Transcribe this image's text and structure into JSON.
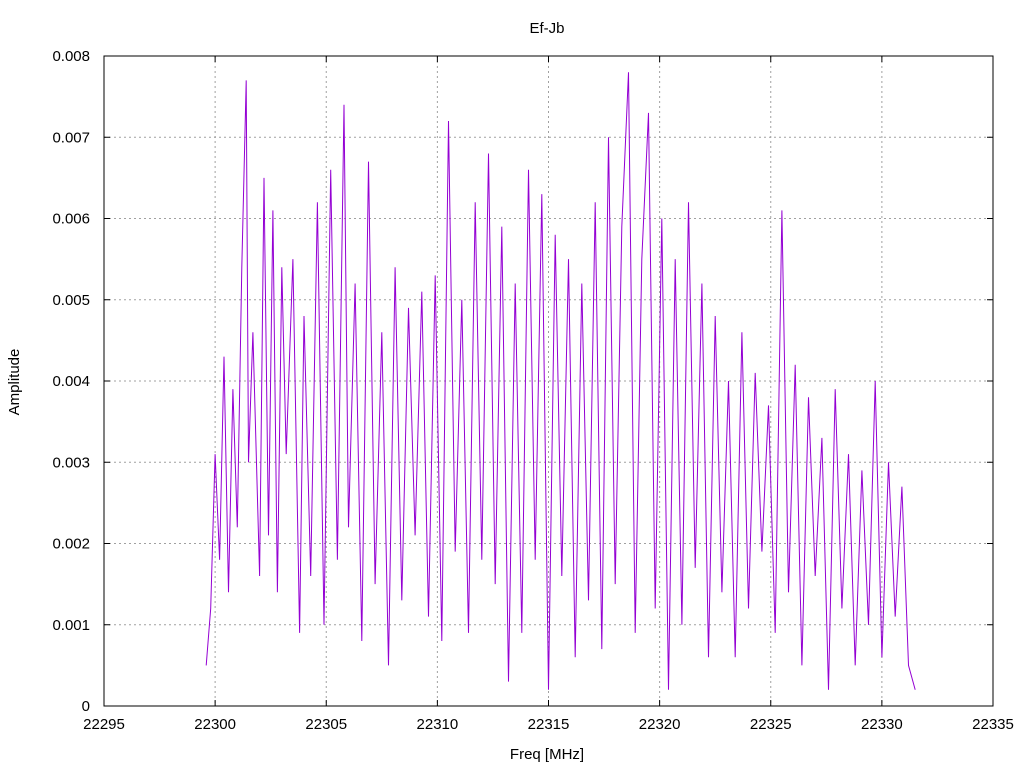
{
  "chart_data": {
    "type": "line",
    "title": "Ef-Jb",
    "xlabel": "Freq [MHz]",
    "ylabel": "Amplitude",
    "xlim": [
      22295,
      22335
    ],
    "ylim": [
      0,
      0.008
    ],
    "xticks": [
      "22295",
      "22300",
      "22305",
      "22310",
      "22315",
      "22320",
      "22325",
      "22330",
      "22335"
    ],
    "yticks": [
      "0",
      "0.001",
      "0.002",
      "0.003",
      "0.004",
      "0.005",
      "0.006",
      "0.007",
      "0.008"
    ],
    "grid": true,
    "line_color": "#9400d3",
    "series": [
      {
        "x": [
          22299.6,
          22299.8,
          22300.0,
          22300.2,
          22300.4,
          22300.6,
          22300.8,
          22301.0,
          22301.2,
          22301.4,
          22301.5,
          22301.7,
          22302.0,
          22302.2,
          22302.4,
          22302.6,
          22302.8,
          22303.0,
          22303.2,
          22303.5,
          22303.8,
          22304.0,
          22304.3,
          22304.6,
          22304.9,
          22305.2,
          22305.5,
          22305.8,
          22306.0,
          22306.3,
          22306.6,
          22306.9,
          22307.2,
          22307.5,
          22307.8,
          22308.1,
          22308.4,
          22308.7,
          22309.0,
          22309.3,
          22309.6,
          22309.9,
          22310.2,
          22310.5,
          22310.8,
          22311.1,
          22311.4,
          22311.7,
          22312.0,
          22312.3,
          22312.6,
          22312.9,
          22313.2,
          22313.5,
          22313.8,
          22314.1,
          22314.4,
          22314.7,
          22315.0,
          22315.3,
          22315.6,
          22315.9,
          22316.2,
          22316.5,
          22316.8,
          22317.1,
          22317.4,
          22317.7,
          22318.0,
          22318.3,
          22318.6,
          22318.9,
          22319.2,
          22319.5,
          22319.8,
          22320.1,
          22320.4,
          22320.7,
          22321.0,
          22321.3,
          22321.6,
          22321.9,
          22322.2,
          22322.5,
          22322.8,
          22323.1,
          22323.4,
          22323.7,
          22324.0,
          22324.3,
          22324.6,
          22324.9,
          22325.2,
          22325.5,
          22325.8,
          22326.1,
          22326.4,
          22326.7,
          22327.0,
          22327.3,
          22327.6,
          22327.9,
          22328.2,
          22328.5,
          22328.8,
          22329.1,
          22329.4,
          22329.7,
          22330.0,
          22330.3,
          22330.6,
          22330.9,
          22331.2,
          22331.5
        ],
        "y": [
          0.0005,
          0.0012,
          0.0031,
          0.0018,
          0.0043,
          0.0014,
          0.0039,
          0.0022,
          0.0054,
          0.0077,
          0.003,
          0.0046,
          0.0016,
          0.0065,
          0.0021,
          0.0061,
          0.0014,
          0.0054,
          0.0031,
          0.0055,
          0.0009,
          0.0048,
          0.0016,
          0.0062,
          0.001,
          0.0066,
          0.0018,
          0.0074,
          0.0022,
          0.0052,
          0.0008,
          0.0067,
          0.0015,
          0.0046,
          0.0005,
          0.0054,
          0.0013,
          0.0049,
          0.0021,
          0.0051,
          0.0011,
          0.0053,
          0.0008,
          0.0072,
          0.0019,
          0.005,
          0.0009,
          0.0062,
          0.0018,
          0.0068,
          0.0015,
          0.0059,
          0.0003,
          0.0052,
          0.0009,
          0.0066,
          0.0018,
          0.0063,
          0.0002,
          0.0058,
          0.0016,
          0.0055,
          0.0006,
          0.0052,
          0.0013,
          0.0062,
          0.0007,
          0.007,
          0.0015,
          0.0059,
          0.0078,
          0.0009,
          0.0055,
          0.0073,
          0.0012,
          0.006,
          0.0002,
          0.0055,
          0.001,
          0.0062,
          0.0017,
          0.0052,
          0.0006,
          0.0048,
          0.0014,
          0.004,
          0.0006,
          0.0046,
          0.0012,
          0.0041,
          0.0019,
          0.0037,
          0.0009,
          0.0061,
          0.0014,
          0.0042,
          0.0005,
          0.0038,
          0.0016,
          0.0033,
          0.0002,
          0.0039,
          0.0012,
          0.0031,
          0.0005,
          0.0029,
          0.001,
          0.004,
          0.0006,
          0.003,
          0.0011,
          0.0027,
          0.0005,
          0.0002
        ]
      }
    ]
  }
}
